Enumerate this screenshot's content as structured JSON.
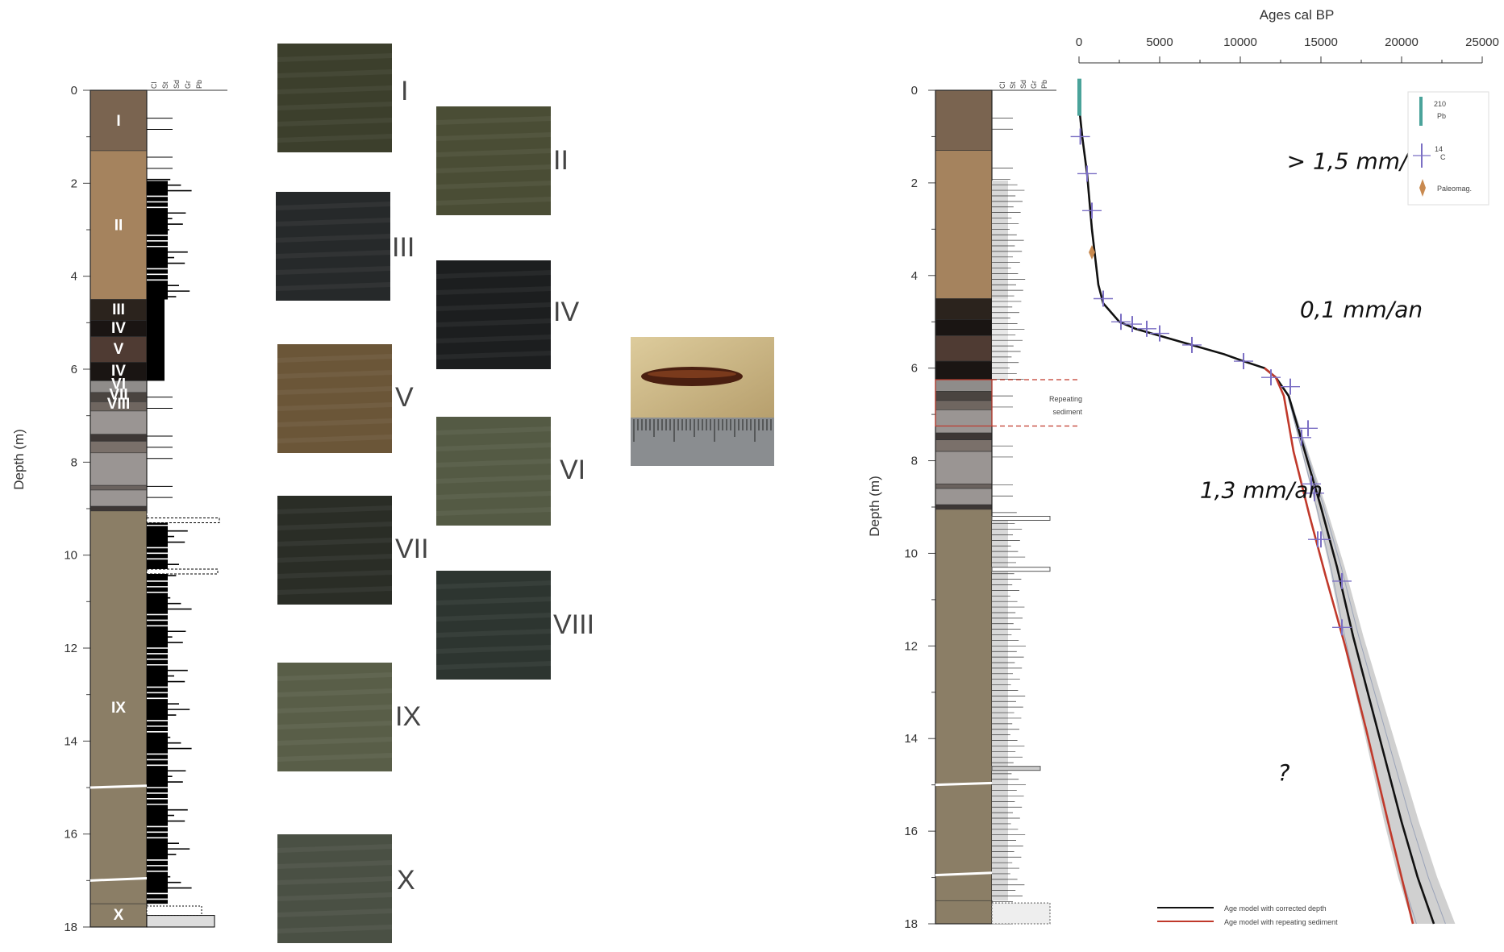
{
  "left_log": {
    "ylabel": "Depth (m)",
    "ticks": [
      0,
      2,
      4,
      6,
      8,
      10,
      12,
      14,
      16,
      18
    ],
    "grain_labels": [
      "Cl",
      "St",
      "Sd",
      "Gr",
      "Pb"
    ],
    "units": [
      {
        "label": "I",
        "top": 0,
        "bottom": 1.3,
        "color": "#7a6450"
      },
      {
        "label": "II",
        "top": 1.3,
        "bottom": 4.5,
        "color": "#a5835e"
      },
      {
        "label": "III",
        "top": 4.5,
        "bottom": 4.95,
        "color": "#2b231d"
      },
      {
        "label": "IV",
        "top": 4.95,
        "bottom": 5.3,
        "color": "#1a1513"
      },
      {
        "label": "V",
        "top": 5.3,
        "bottom": 5.85,
        "color": "#4f3b33"
      },
      {
        "label": "IV",
        "top": 5.85,
        "bottom": 6.25,
        "color": "#1a1513"
      },
      {
        "label": "VI",
        "top": 6.25,
        "bottom": 6.5,
        "color": "#8f8c8a"
      },
      {
        "label": "VII",
        "top": 6.5,
        "bottom": 6.7,
        "color": "#4a4440"
      },
      {
        "label": "VIII",
        "top": 6.7,
        "bottom": 6.9,
        "color": "#6f6660"
      },
      {
        "label": "",
        "top": 6.9,
        "bottom": 7.4,
        "color": "#9a9593"
      },
      {
        "label": "",
        "top": 7.4,
        "bottom": 7.55,
        "color": "#3d3735"
      },
      {
        "label": "",
        "top": 7.55,
        "bottom": 7.8,
        "color": "#7a706a"
      },
      {
        "label": "",
        "top": 7.8,
        "bottom": 8.5,
        "color": "#9a9593"
      },
      {
        "label": "",
        "top": 8.5,
        "bottom": 8.6,
        "color": "#6a625e"
      },
      {
        "label": "",
        "top": 8.6,
        "bottom": 8.95,
        "color": "#9a9593"
      },
      {
        "label": "",
        "top": 8.95,
        "bottom": 9.05,
        "color": "#3d3735"
      },
      {
        "label": "IX",
        "top": 9.05,
        "bottom": 17.5,
        "color": "#8b7e66"
      },
      {
        "label": "X",
        "top": 17.5,
        "bottom": 18.0,
        "color": "#8b7e66"
      }
    ]
  },
  "photos": [
    {
      "label": "I",
      "color": "#3c3f2c"
    },
    {
      "label": "II",
      "color": "#4a4d35"
    },
    {
      "label": "III",
      "color": "#26292a"
    },
    {
      "label": "IV",
      "color": "#1c1e1f"
    },
    {
      "label": "V",
      "color": "#6b5638"
    },
    {
      "label": "VI",
      "color": "#545a44"
    },
    {
      "label": "VII",
      "color": "#2a2d26"
    },
    {
      "label": "VIII",
      "color": "#2d3530"
    },
    {
      "label": "IX",
      "color": "#595e48"
    },
    {
      "label": "X",
      "color": "#4a5044"
    }
  ],
  "right_log": {
    "ylabel": "Depth (m)",
    "ticks": [
      0,
      2,
      4,
      6,
      8,
      10,
      12,
      14,
      16,
      18
    ],
    "grain_labels": [
      "Cl",
      "St",
      "Sd",
      "Gr",
      "Pb"
    ],
    "repeat_label": [
      "Repeating",
      "sediment"
    ],
    "repeat_top": 6.25,
    "repeat_bottom": 7.25
  },
  "chart_data": {
    "type": "line",
    "title": "",
    "xlabel": "Ages cal BP",
    "ylabel": "Depth (m)",
    "xlim": [
      0,
      25000
    ],
    "ylim": [
      0,
      18
    ],
    "y_inverted": true,
    "x_ticks": [
      0,
      5000,
      10000,
      15000,
      20000,
      25000
    ],
    "y_ticks": [
      0,
      2,
      4,
      6,
      8,
      10,
      12,
      14,
      16,
      18
    ],
    "series": [
      {
        "name": "Age model with corrected depth",
        "color": "#111111",
        "x": [
          0,
          50,
          200,
          500,
          800,
          1200,
          1500,
          2500,
          3500,
          5000,
          7000,
          9000,
          10200,
          11500,
          12200,
          13000,
          14000,
          15000,
          16000,
          17000,
          18500,
          20000,
          21000,
          22000
        ],
        "y": [
          0,
          0.5,
          1.0,
          1.8,
          3.0,
          4.2,
          4.6,
          5.0,
          5.15,
          5.3,
          5.5,
          5.7,
          5.85,
          6.0,
          6.2,
          6.6,
          7.8,
          9.0,
          10.3,
          11.8,
          13.8,
          15.8,
          17.0,
          18.0
        ]
      },
      {
        "name": "Age model with repeating sediment",
        "color": "#c0392b",
        "x": [
          11500,
          12200,
          12700,
          13300,
          14300,
          15300,
          16500,
          17800,
          19300,
          20700
        ],
        "y": [
          6.0,
          6.2,
          6.6,
          7.8,
          9.2,
          10.5,
          12.0,
          13.8,
          16.0,
          18.0
        ]
      }
    ],
    "markers": {
      "pb210": {
        "name": "²¹⁰Pb",
        "x": [
          0
        ],
        "y": [
          0
        ]
      },
      "c14": {
        "name": "¹⁴C",
        "x": [
          80,
          500,
          800,
          1500,
          2600,
          3300,
          4200,
          5000,
          7000,
          10200,
          11900,
          13100,
          14200,
          13800,
          14600,
          14400,
          14800,
          16300,
          16300,
          15000
        ],
        "y": [
          1.0,
          1.8,
          2.6,
          4.5,
          5.0,
          5.05,
          5.15,
          5.25,
          5.5,
          5.85,
          6.2,
          6.4,
          7.3,
          7.5,
          8.7,
          8.5,
          9.7,
          10.6,
          11.6,
          9.7
        ]
      },
      "paleomag": {
        "name": "Paleomag.",
        "x": [
          800
        ],
        "y": [
          3.5
        ]
      }
    },
    "annotations": [
      {
        "text": "> 1,5 mm/an",
        "x": 17500,
        "y": 1.7
      },
      {
        "text": "0,1 mm/an",
        "x": 17500,
        "y": 4.9
      },
      {
        "text": "1,3 mm/an",
        "x": 11300,
        "y": 8.8
      },
      {
        "text": "?",
        "x": 12700,
        "y": 14.9
      }
    ],
    "legend_placement": "bottom-right",
    "grid": false
  },
  "right_legend": {
    "pb": "Pb",
    "c": "C",
    "paleomag": "Paleomag.",
    "pb_sup": "210",
    "c_sup": "14"
  }
}
